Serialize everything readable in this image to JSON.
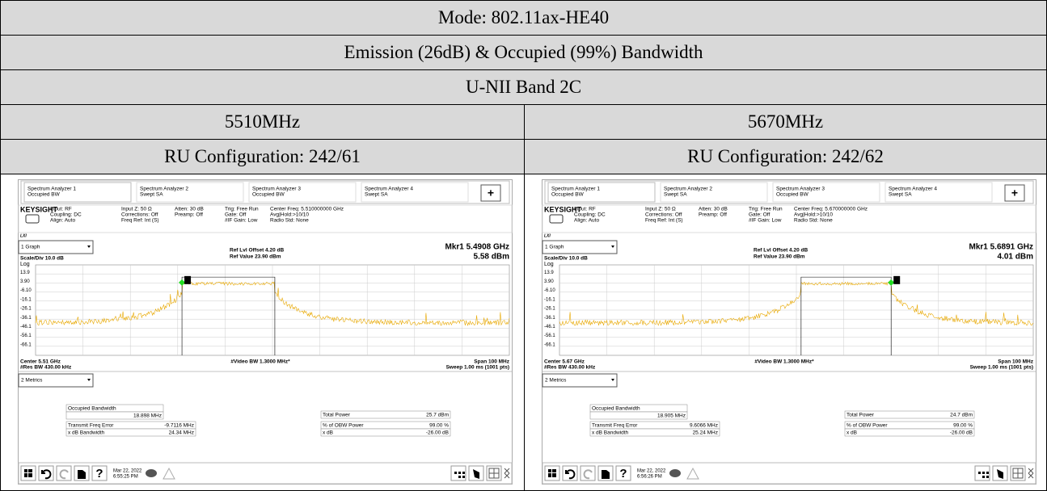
{
  "header": {
    "mode": "Mode: 802.11ax-HE40",
    "test": "Emission (26dB) & Occupied (99%) Bandwidth",
    "band": "U-NII Band 2C"
  },
  "panels": [
    {
      "frequency": "5510MHz",
      "ru": "RU Configuration: 242/61",
      "screen": {
        "tabs": [
          [
            "Spectrum Analyzer 1",
            "Occupied BW"
          ],
          [
            "Spectrum Analyzer 2",
            "Swept SA"
          ],
          [
            "Spectrum Analyzer 3",
            "Occupied BW"
          ],
          [
            "Spectrum Analyzer 4",
            "Swept SA"
          ]
        ],
        "plus": "+",
        "brand": "KEYSIGHT",
        "settings": [
          [
            "Input: RF",
            "Coupling: DC",
            "Align: Auto"
          ],
          [
            "Input Z: 50 Ω",
            "Corrections: Off",
            "Freq Ref: Int (S)"
          ],
          [
            "Atten: 30 dB",
            "Preamp: Off"
          ],
          [
            "Trig: Free Run",
            "Gate: Off",
            "#IF Gain: Low"
          ],
          [
            "Center Freq: 5.510000000 GHz",
            "Avg|Hold:>10/10",
            "Radio Std: None"
          ]
        ],
        "lxi": "LXI",
        "graph_select": "1 Graph",
        "scale": "Scale/Div 10.0 dB",
        "log": "Log",
        "ref_offset": "Ref Lvl Offset 4.20 dB",
        "ref_value": "Ref Value 23.90 dBm",
        "marker_freq": "Mkr1  5.4908 GHz",
        "marker_level": "5.58 dBm",
        "marker_id": "1",
        "y_labels": [
          "13.9",
          "3.90",
          "-6.10",
          "-16.1",
          "-26.1",
          "-36.1",
          "-46.1",
          "-56.1",
          "-66.1"
        ],
        "center": "Center 5.51 GHz",
        "res_bw": "#Res BW 430.00 kHz",
        "video_bw": "#Video BW 1.3000 MHz*",
        "span": "Span 100 MHz",
        "sweep": "Sweep 1.00 ms (1001 pts)",
        "metrics_select": "2 Metrics",
        "metrics": {
          "obw_label": "Occupied Bandwidth",
          "obw": "18.898 MHz",
          "left": [
            [
              "Transmit Freq Error",
              "-9.7116 MHz"
            ],
            [
              "x dB Bandwidth",
              "24.34 MHz"
            ]
          ],
          "right": [
            [
              "Total Power",
              "25.7 dBm"
            ],
            [
              "% of OBW Power",
              "99.00 %"
            ],
            [
              "x dB",
              "-26.00 dB"
            ]
          ]
        },
        "help": "?",
        "date": "Mar 22, 2022",
        "time": "6:55:25 PM"
      }
    },
    {
      "frequency": "5670MHz",
      "ru": "RU Configuration: 242/62",
      "screen": {
        "tabs": [
          [
            "Spectrum Analyzer 1",
            "Occupied BW"
          ],
          [
            "Spectrum Analyzer 2",
            "Swept SA"
          ],
          [
            "Spectrum Analyzer 3",
            "Occupied BW"
          ],
          [
            "Spectrum Analyzer 4",
            "Swept SA"
          ]
        ],
        "plus": "+",
        "brand": "KEYSIGHT",
        "settings": [
          [
            "Input: RF",
            "Coupling: DC",
            "Align: Auto"
          ],
          [
            "Input Z: 50 Ω",
            "Corrections: Off",
            "Freq Ref: Int (S)"
          ],
          [
            "Atten: 30 dB",
            "Preamp: Off"
          ],
          [
            "Trig: Free Run",
            "Gate: Off",
            "#IF Gain: Low"
          ],
          [
            "Center Freq: 5.670000000 GHz",
            "Avg|Hold:>10/10",
            "Radio Std: None"
          ]
        ],
        "lxi": "LXI",
        "graph_select": "1 Graph",
        "scale": "Scale/Div 10.0 dB",
        "log": "Log",
        "ref_offset": "Ref Lvl Offset 4.20 dB",
        "ref_value": "Ref Value 23.90 dBm",
        "marker_freq": "Mkr1  5.6891 GHz",
        "marker_level": "4.01 dBm",
        "marker_id": "1",
        "y_labels": [
          "13.9",
          "3.90",
          "-6.10",
          "-16.1",
          "-26.1",
          "-36.1",
          "-46.1",
          "-56.1",
          "-66.1"
        ],
        "center": "Center 5.67 GHz",
        "res_bw": "#Res BW 430.00 kHz",
        "video_bw": "#Video BW 1.3000 MHz*",
        "span": "Span 100 MHz",
        "sweep": "Sweep 1.00 ms (1001 pts)",
        "metrics_select": "2 Metrics",
        "metrics": {
          "obw_label": "Occupied Bandwidth",
          "obw": "18.905 MHz",
          "left": [
            [
              "Transmit Freq Error",
              "9.6066 MHz"
            ],
            [
              "x dB Bandwidth",
              "25.24 MHz"
            ]
          ],
          "right": [
            [
              "Total Power",
              "24.7 dBm"
            ],
            [
              "% of OBW Power",
              "99.00 %"
            ],
            [
              "x dB",
              "-26.00 dB"
            ]
          ]
        },
        "help": "?",
        "date": "Mar 22, 2022",
        "time": "6:56:26 PM"
      }
    }
  ]
}
